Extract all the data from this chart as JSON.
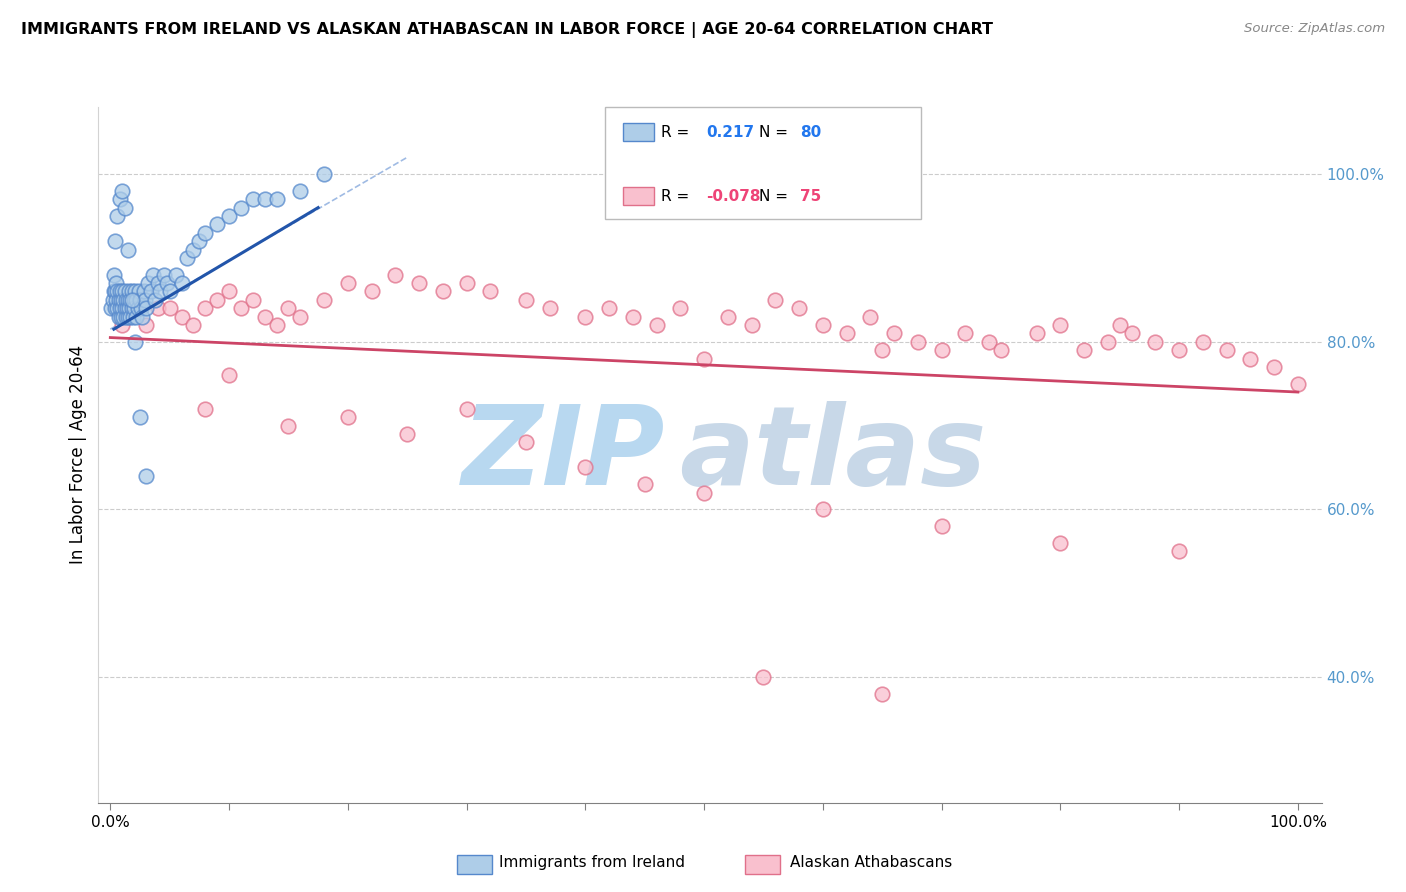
{
  "title": "IMMIGRANTS FROM IRELAND VS ALASKAN ATHABASCAN IN LABOR FORCE | AGE 20-64 CORRELATION CHART",
  "source": "Source: ZipAtlas.com",
  "ylabel": "In Labor Force | Age 20-64",
  "xlim": [
    0.0,
    1.0
  ],
  "ylim": [
    0.25,
    1.08
  ],
  "legend_r_blue": "0.217",
  "legend_n_blue": "80",
  "legend_r_pink": "-0.078",
  "legend_n_pink": "75",
  "blue_color": "#aecde8",
  "blue_edge": "#5588cc",
  "pink_color": "#f9c0ce",
  "pink_edge": "#e0708a",
  "trendline_blue": "#2255aa",
  "trendline_pink": "#cc4466",
  "dashed_blue": "#88aadd",
  "grid_color": "#cccccc",
  "right_tick_color": "#5599cc",
  "blue_scatter_x": [
    0.001,
    0.002,
    0.003,
    0.003,
    0.004,
    0.004,
    0.005,
    0.005,
    0.006,
    0.006,
    0.007,
    0.007,
    0.008,
    0.008,
    0.009,
    0.009,
    0.01,
    0.01,
    0.011,
    0.011,
    0.012,
    0.012,
    0.013,
    0.013,
    0.014,
    0.015,
    0.015,
    0.016,
    0.016,
    0.017,
    0.017,
    0.018,
    0.018,
    0.019,
    0.02,
    0.02,
    0.021,
    0.022,
    0.022,
    0.023,
    0.024,
    0.025,
    0.026,
    0.027,
    0.028,
    0.029,
    0.03,
    0.032,
    0.034,
    0.036,
    0.038,
    0.04,
    0.042,
    0.045,
    0.048,
    0.05,
    0.055,
    0.06,
    0.065,
    0.07,
    0.075,
    0.08,
    0.09,
    0.1,
    0.11,
    0.12,
    0.13,
    0.14,
    0.16,
    0.18,
    0.004,
    0.006,
    0.008,
    0.01,
    0.012,
    0.015,
    0.018,
    0.021,
    0.025,
    0.03
  ],
  "blue_scatter_y": [
    0.84,
    0.85,
    0.86,
    0.88,
    0.84,
    0.86,
    0.85,
    0.87,
    0.84,
    0.86,
    0.83,
    0.85,
    0.84,
    0.86,
    0.83,
    0.85,
    0.84,
    0.86,
    0.83,
    0.85,
    0.84,
    0.86,
    0.83,
    0.85,
    0.84,
    0.83,
    0.85,
    0.84,
    0.86,
    0.83,
    0.85,
    0.84,
    0.86,
    0.83,
    0.85,
    0.84,
    0.86,
    0.85,
    0.83,
    0.84,
    0.86,
    0.85,
    0.84,
    0.83,
    0.86,
    0.85,
    0.84,
    0.87,
    0.86,
    0.88,
    0.85,
    0.87,
    0.86,
    0.88,
    0.87,
    0.86,
    0.88,
    0.87,
    0.9,
    0.91,
    0.92,
    0.93,
    0.94,
    0.95,
    0.96,
    0.97,
    0.97,
    0.97,
    0.98,
    1.0,
    0.92,
    0.95,
    0.97,
    0.98,
    0.96,
    0.91,
    0.85,
    0.8,
    0.71,
    0.64
  ],
  "pink_scatter_x": [
    0.01,
    0.02,
    0.03,
    0.04,
    0.05,
    0.06,
    0.07,
    0.08,
    0.09,
    0.1,
    0.11,
    0.12,
    0.13,
    0.14,
    0.15,
    0.16,
    0.18,
    0.2,
    0.22,
    0.24,
    0.26,
    0.28,
    0.3,
    0.32,
    0.35,
    0.37,
    0.4,
    0.42,
    0.44,
    0.46,
    0.48,
    0.5,
    0.52,
    0.54,
    0.56,
    0.58,
    0.6,
    0.62,
    0.64,
    0.65,
    0.66,
    0.68,
    0.7,
    0.72,
    0.74,
    0.75,
    0.78,
    0.8,
    0.82,
    0.84,
    0.85,
    0.86,
    0.88,
    0.9,
    0.92,
    0.94,
    0.96,
    0.98,
    1.0,
    0.1,
    0.08,
    0.15,
    0.2,
    0.25,
    0.3,
    0.35,
    0.4,
    0.45,
    0.5,
    0.6,
    0.7,
    0.8,
    0.9,
    0.55,
    0.65
  ],
  "pink_scatter_y": [
    0.82,
    0.84,
    0.82,
    0.84,
    0.84,
    0.83,
    0.82,
    0.84,
    0.85,
    0.86,
    0.84,
    0.85,
    0.83,
    0.82,
    0.84,
    0.83,
    0.85,
    0.87,
    0.86,
    0.88,
    0.87,
    0.86,
    0.87,
    0.86,
    0.85,
    0.84,
    0.83,
    0.84,
    0.83,
    0.82,
    0.84,
    0.78,
    0.83,
    0.82,
    0.85,
    0.84,
    0.82,
    0.81,
    0.83,
    0.79,
    0.81,
    0.8,
    0.79,
    0.81,
    0.8,
    0.79,
    0.81,
    0.82,
    0.79,
    0.8,
    0.82,
    0.81,
    0.8,
    0.79,
    0.8,
    0.79,
    0.78,
    0.77,
    0.75,
    0.76,
    0.72,
    0.7,
    0.71,
    0.69,
    0.72,
    0.68,
    0.65,
    0.63,
    0.62,
    0.6,
    0.58,
    0.56,
    0.55,
    0.4,
    0.38
  ],
  "watermark_zip_color": "#b8d8f0",
  "watermark_atlas_color": "#c8d8e8"
}
